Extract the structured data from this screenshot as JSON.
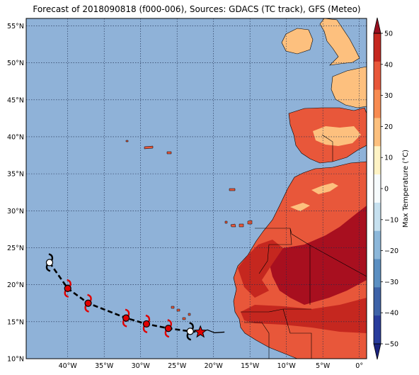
{
  "title": "Forecast of 2018090818 (f000-006), Sources: GDACS (TC track), GFS (Meteo)",
  "map": {
    "lon_ticks": [
      "40°W",
      "35°W",
      "30°W",
      "25°W",
      "20°W",
      "15°W",
      "10°W",
      "5°W",
      "0°"
    ],
    "lat_ticks": [
      "55°N",
      "50°N",
      "45°N",
      "40°N",
      "35°N",
      "30°N",
      "25°N",
      "20°N",
      "15°N",
      "10°N"
    ],
    "ocean_color": "#8fb2d8",
    "grid": "on, dotted"
  },
  "colorbar": {
    "label": "Max Temperature (°C)",
    "ticks": [
      "50",
      "40",
      "30",
      "20",
      "10",
      "0",
      "−10",
      "−20",
      "−30",
      "−40",
      "−50"
    ],
    "extend": "both",
    "colors": [
      "#1a237e",
      "#283c9c",
      "#3e63a8",
      "#5b8fc2",
      "#8cb7da",
      "#c6e0ef",
      "#f6fbfd",
      "#fef3c5",
      "#fdc07e",
      "#f88b51",
      "#e8573a",
      "#c5271f",
      "#980f1f"
    ]
  },
  "track": {
    "points": [
      {
        "lon": -42.5,
        "lat": 23.0,
        "color": "white"
      },
      {
        "lon": -40.0,
        "lat": 19.5,
        "color": "red"
      },
      {
        "lon": -37.2,
        "lat": 17.5,
        "color": "red"
      },
      {
        "lon": -32.0,
        "lat": 15.5,
        "color": "red"
      },
      {
        "lon": -29.2,
        "lat": 14.7,
        "color": "red"
      },
      {
        "lon": -26.2,
        "lat": 14.1,
        "color": "red"
      },
      {
        "lon": -23.2,
        "lat": 13.7,
        "color": "white"
      }
    ],
    "current_position": {
      "lon": -21.8,
      "lat": 13.6
    },
    "storm_marker_color": "#e00000"
  }
}
